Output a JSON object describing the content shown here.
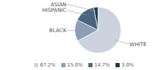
{
  "chart_data": {
    "type": "pie",
    "categories": [
      "WHITE",
      "BLACK",
      "HISPANIC",
      "ASIAN"
    ],
    "values": [
      67.2,
      15.0,
      14.7,
      3.0
    ],
    "value_labels": [
      "67.2%",
      "15.0%",
      "14.7%",
      "3.0%"
    ],
    "colors": [
      "#ccd3de",
      "#8c9db5",
      "#4a6580",
      "#1d3650"
    ],
    "legend": "bottom"
  }
}
